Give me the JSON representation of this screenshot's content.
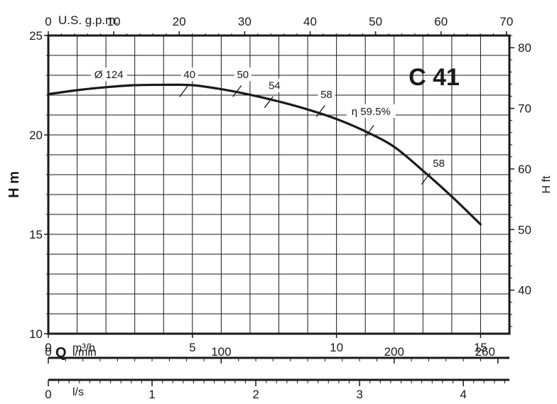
{
  "chart_data": {
    "type": "line",
    "title": "C 41",
    "ylabel_left": "H m",
    "ylabel_right": "H ft",
    "xaxis_top": {
      "label": "U.S. g.p.m.",
      "ticks": [
        "0",
        "10",
        "20",
        "30",
        "40",
        "50",
        "60",
        "70"
      ],
      "range": [
        0,
        70
      ]
    },
    "xaxis_main": {
      "label_prefix": "Q",
      "label_unit": "m³/h",
      "ticks": [
        "0",
        "5",
        "10",
        "15"
      ],
      "range": [
        0,
        16
      ]
    },
    "xaxis_lmin": {
      "label": "l/min",
      "ticks": [
        {
          "v": 0,
          "t": "0"
        },
        {
          "v": 100,
          "t": "100"
        },
        {
          "v": 200,
          "t": "200"
        },
        {
          "v": 260,
          "t": "260"
        }
      ]
    },
    "xaxis_ls": {
      "label": "l/s",
      "ticks": [
        "0",
        "1",
        "2",
        "3",
        "4"
      ]
    },
    "yaxis_left": {
      "range": [
        10,
        25
      ],
      "ticks": [
        "10",
        "15",
        "20",
        "25"
      ]
    },
    "yaxis_right": {
      "range_ft": [
        32.8,
        82.0
      ],
      "ticks": [
        "40",
        "50",
        "60",
        "70",
        "80"
      ]
    },
    "grid": true,
    "series": [
      {
        "name": "",
        "x": [
          0,
          1,
          2,
          3,
          4,
          5,
          6,
          7,
          8,
          9,
          10,
          11,
          12,
          13,
          14,
          15
        ],
        "y": [
          22.05,
          22.25,
          22.4,
          22.5,
          22.52,
          22.5,
          22.3,
          22.02,
          21.68,
          21.28,
          20.8,
          20.18,
          19.4,
          18.2,
          16.9,
          15.5
        ]
      }
    ],
    "annotations": [
      {
        "text": "Ø 124",
        "x": 2.1,
        "y": 22.85
      },
      {
        "text": "40",
        "x": 4.9,
        "y": 22.85,
        "tick_x": 4.7,
        "tick_y": 22.2
      },
      {
        "text": "50",
        "x": 6.75,
        "y": 22.85,
        "tick_x": 6.55,
        "tick_y": 22.2
      },
      {
        "text": "54",
        "x": 7.85,
        "y": 22.3,
        "tick_x": 7.65,
        "tick_y": 21.65
      },
      {
        "text": "58",
        "x": 9.65,
        "y": 21.85,
        "tick_x": 9.45,
        "tick_y": 21.2
      },
      {
        "text": "η 59.5%",
        "x": 11.2,
        "y": 21.0,
        "tick_x": 11.15,
        "tick_y": 20.2
      },
      {
        "text": "58",
        "x": 13.55,
        "y": 18.4,
        "tick_x": 13.1,
        "tick_y": 17.8
      }
    ]
  }
}
